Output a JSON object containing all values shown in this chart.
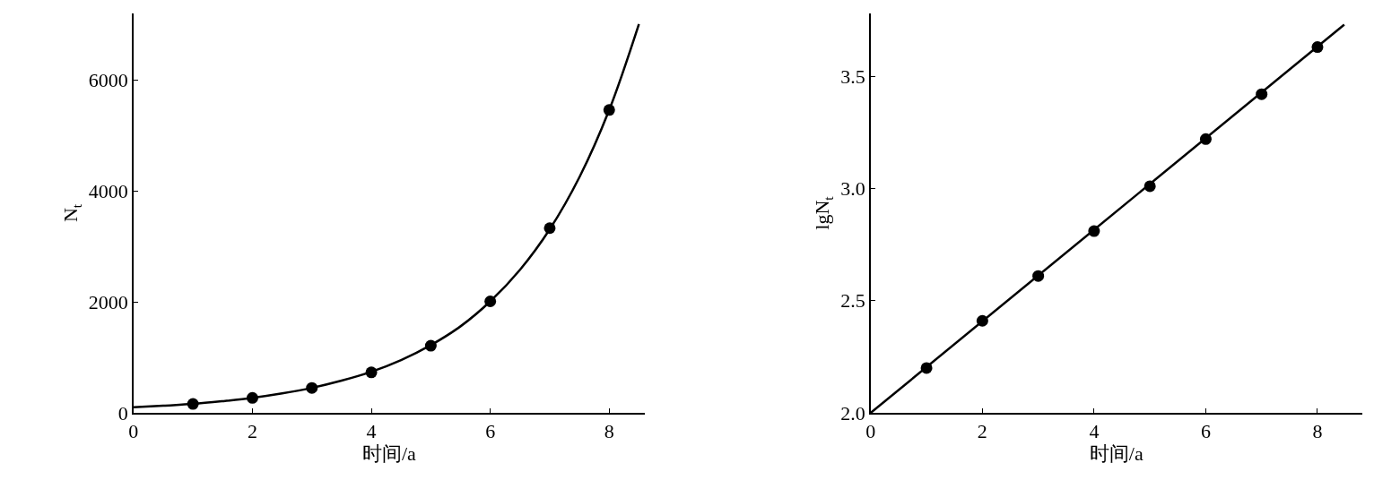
{
  "chart_data": [
    {
      "type": "scatter",
      "xlabel": "时间/a",
      "ylabel": "N$_{t}$",
      "xlim": [
        0,
        8.6
      ],
      "ylim": [
        0,
        7200
      ],
      "xticks": [
        0,
        2,
        4,
        6,
        8
      ],
      "yticks": [
        0,
        2000,
        4000,
        6000
      ],
      "marker": "circle",
      "x": [
        1,
        2,
        3,
        4,
        5,
        6,
        7,
        8
      ],
      "series": [
        {
          "color": "#000000",
          "values": [
            160,
            270,
            450,
            730,
            1210,
            2010,
            3330,
            5460
          ]
        },
        {
          "type": "line",
          "color": "#000000",
          "marker": "none",
          "line_style": "solid",
          "x": [
            0,
            0.5,
            1,
            1.5,
            2,
            2.5,
            3,
            3.5,
            4,
            4.5,
            5,
            5.5,
            6,
            6.5,
            7,
            7.5,
            8,
            8.5
          ],
          "values": [
            100,
            130,
            160,
            210,
            270,
            350,
            450,
            580,
            740,
            950,
            1220,
            1560,
            2010,
            2580,
            3310,
            4250,
            5460,
            7010
          ]
        }
      ]
    },
    {
      "type": "scatter",
      "xlabel": "时间/a",
      "ylabel": "lgN$_{t}$",
      "xlim": [
        0,
        8.8
      ],
      "ylim": [
        2.0,
        3.78
      ],
      "xticks": [
        0,
        2,
        4,
        6,
        8
      ],
      "yticks": [
        {
          "value": 2.0,
          "label": "2.0"
        },
        {
          "value": 2.5,
          "label": "2.5"
        },
        {
          "value": 3.0,
          "label": "3.0"
        },
        {
          "value": 3.5,
          "label": "3.5"
        }
      ],
      "marker": "circle",
      "x": [
        1,
        2,
        3,
        4,
        5,
        6,
        7,
        8
      ],
      "series": [
        {
          "color": "#000000",
          "values": [
            2.2,
            2.41,
            2.61,
            2.81,
            3.01,
            3.22,
            3.42,
            3.63
          ]
        },
        {
          "type": "line",
          "color": "#000000",
          "marker": "none",
          "line_style": "solid",
          "x": [
            0,
            8.48
          ],
          "values": [
            2.0,
            3.73
          ]
        }
      ]
    }
  ]
}
